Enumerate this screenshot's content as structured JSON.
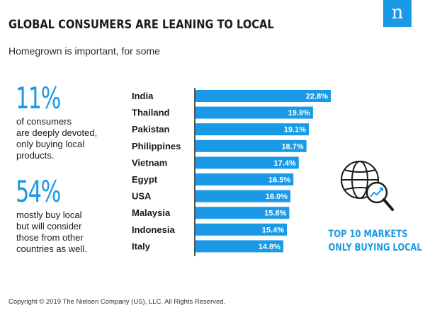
{
  "brand": {
    "logo_letter": "n",
    "color": "#1a9ae6"
  },
  "header": {
    "title": "GLOBAL CONSUMERS ARE LEANING TO LOCAL",
    "subtitle": "Homegrown is important, for some"
  },
  "stats": [
    {
      "value": "11%",
      "lines": [
        "of consumers",
        "are deeply devoted,",
        "only buying local",
        "products."
      ]
    },
    {
      "value": "54%",
      "lines": [
        "mostly buy local",
        "but will consider",
        "those from other",
        "countries as well."
      ]
    }
  ],
  "callout": {
    "lines": [
      "TOP 10 MARKETS",
      "ONLY BUYING LOCAL"
    ],
    "icon": "globe-magnifier-icon"
  },
  "footer": {
    "copyright": "Copyright © 2019 The Nielsen Company (US), LLC. All Rights Reserved."
  },
  "chart_data": {
    "type": "bar",
    "orientation": "horizontal",
    "categories": [
      "India",
      "Thailand",
      "Pakistan",
      "Philippines",
      "Vietnam",
      "Egypt",
      "USA",
      "Malaysia",
      "Indonesia",
      "Italy"
    ],
    "values": [
      22.8,
      19.8,
      19.1,
      18.7,
      17.4,
      16.5,
      16.0,
      15.8,
      15.4,
      14.8
    ],
    "value_labels": [
      "22.8%",
      "19.8%",
      "19.1%",
      "18.7%",
      "17.4%",
      "16.5%",
      "16.0%",
      "15.8%",
      "15.4%",
      "14.8%"
    ],
    "xlim": [
      0,
      22.8
    ],
    "bar_color": "#1a9ae6",
    "grid": false
  }
}
